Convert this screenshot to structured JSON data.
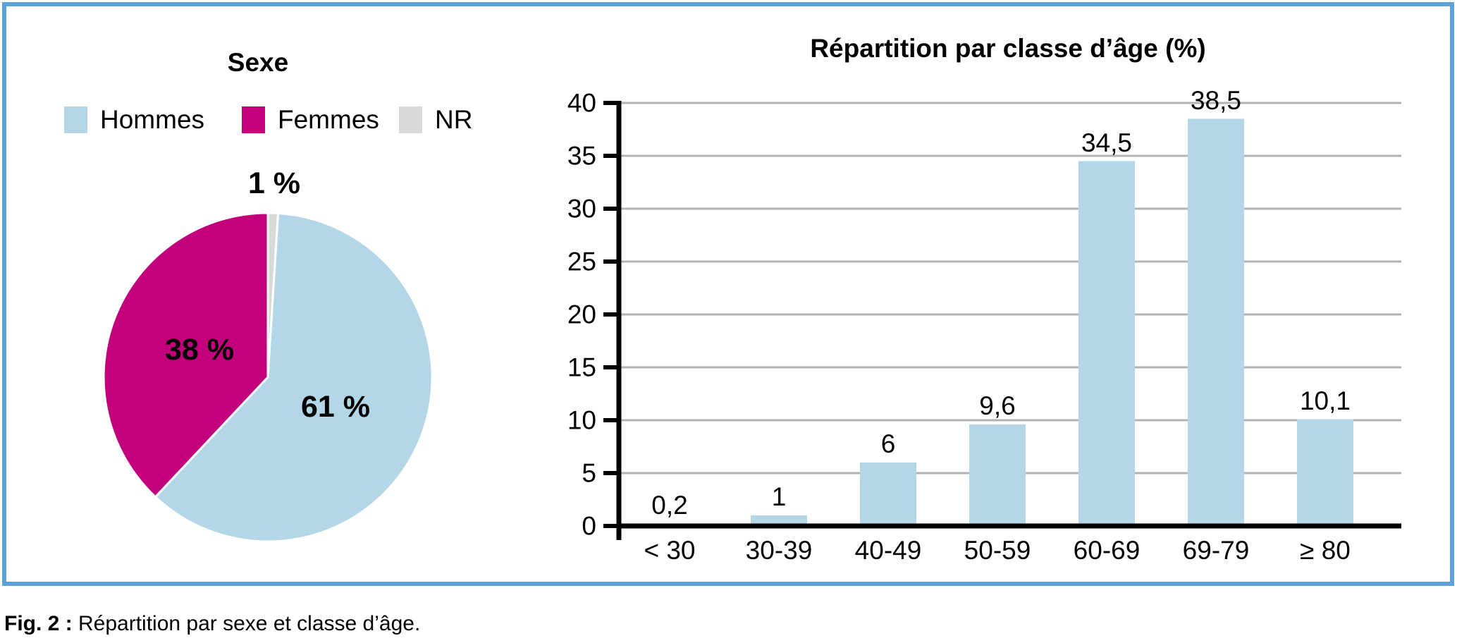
{
  "figure": {
    "caption": {
      "prefix": "Fig. 2 :",
      "text": "Répartition par sexe et classe d’âge."
    },
    "border_color": "#5da0dc"
  },
  "chart_data": [
    {
      "type": "pie",
      "title": "Sexe",
      "legend_position": "top",
      "order_clockwise_from_top": [
        "NR",
        "Hommes",
        "Femmes"
      ],
      "slices": [
        {
          "label": "Hommes",
          "value": 61,
          "display": "61 %",
          "color": "#b3d7e6"
        },
        {
          "label": "Femmes",
          "value": 38,
          "display": "38 %",
          "color": "#c3007b"
        },
        {
          "label": "NR",
          "value": 1,
          "display": "1 %",
          "color": "#d9d9d9"
        }
      ]
    },
    {
      "type": "bar",
      "title": "Répartition par classe d’âge (%)",
      "categories": [
        "< 30",
        "30-39",
        "40-49",
        "50-59",
        "60-69",
        "69-79",
        "≥ 80"
      ],
      "values": [
        0.2,
        1,
        6,
        9.6,
        34.5,
        38.5,
        10.1
      ],
      "value_labels": [
        "0,2",
        "1",
        "6",
        "9,6",
        "34,5",
        "38,5",
        "10,1"
      ],
      "ylim": [
        0,
        40
      ],
      "ytick_step": 5,
      "ytick_labels": [
        "0",
        "5",
        "10",
        "15",
        "20",
        "25",
        "30",
        "35",
        "40"
      ],
      "bar_color": "#b3d7e6",
      "grid": true,
      "gridline_color": "#b2b2b2",
      "axis_color": "#000000"
    }
  ]
}
